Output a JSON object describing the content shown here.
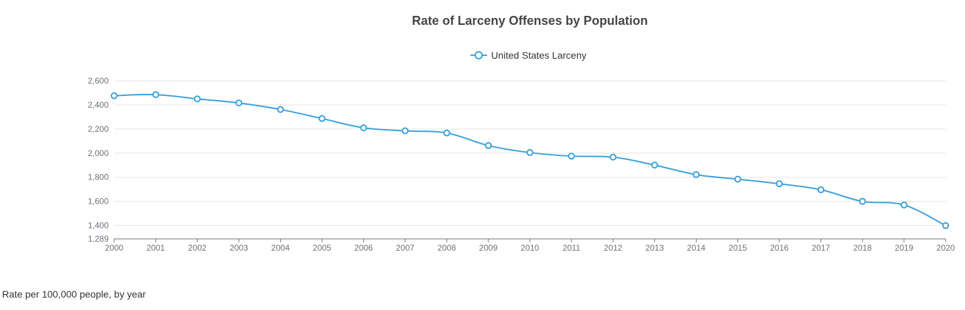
{
  "caption": "Rate per 100,000 people, by year",
  "colors": {
    "series": "#3ba1da",
    "grid": "#e6e6e6",
    "axis": "#6e7079",
    "title": "#464646",
    "text": "#333333"
  },
  "chart_data": {
    "type": "line",
    "title": "Rate of Larceny Offenses by Population",
    "xlabel": "",
    "ylabel": "",
    "legend_position": "top-center",
    "grid": true,
    "smooth": true,
    "ylim": [
      1289,
      2600
    ],
    "y_ticks": [
      1289,
      1400,
      1600,
      1800,
      2000,
      2200,
      2400,
      2600
    ],
    "y_tick_labels": [
      "1,289",
      "1,400",
      "1,600",
      "1,800",
      "2,000",
      "2,200",
      "2,400",
      "2,600"
    ],
    "categories": [
      "2000",
      "2001",
      "2002",
      "2003",
      "2004",
      "2005",
      "2006",
      "2007",
      "2008",
      "2009",
      "2010",
      "2011",
      "2012",
      "2013",
      "2014",
      "2015",
      "2016",
      "2017",
      "2018",
      "2019",
      "2020"
    ],
    "series": [
      {
        "name": "United States Larceny",
        "values": [
          2476,
          2485,
          2450,
          2416,
          2362,
          2287,
          2210,
          2185,
          2167,
          2063,
          2005,
          1975,
          1967,
          1901,
          1822,
          1784,
          1746,
          1696,
          1600,
          1570,
          1399
        ]
      }
    ]
  }
}
